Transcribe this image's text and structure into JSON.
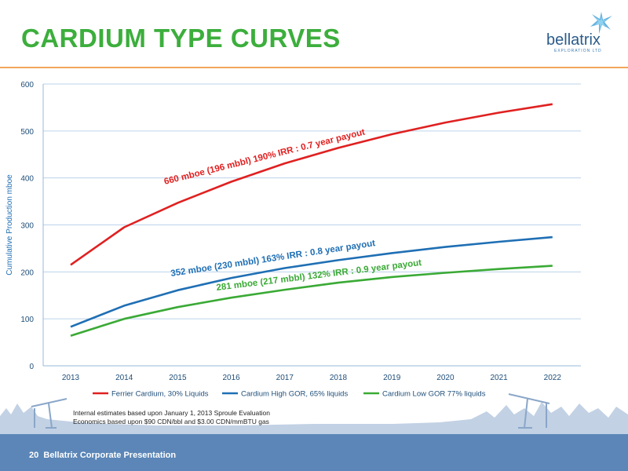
{
  "title": "CARDIUM TYPE CURVES",
  "logo": {
    "name": "bellatrix",
    "sub": "EXPLORATION LTD"
  },
  "footer": {
    "page_number": "20",
    "text": "Bellatrix Corporate Presentation"
  },
  "footnote": {
    "line1": "Internal estimates based upon January 1, 2013 Sproule Evaluation",
    "line2": "Economics based upon $90 CDN/bbl and $3.00 CDN/mmBTU gas"
  },
  "colors": {
    "title": "#3cae3c",
    "footer": "#5b86b7",
    "rule": "#f2a65a",
    "axis_text": "#1f4e79"
  },
  "chart_data": {
    "type": "line",
    "x": [
      "2013",
      "2014",
      "2015",
      "2016",
      "2017",
      "2018",
      "2019",
      "2020",
      "2021",
      "2022"
    ],
    "ylabel": "Cumulative Production mboe",
    "ylim": [
      0,
      600
    ],
    "yticks": [
      0,
      100,
      200,
      300,
      400,
      500,
      600
    ],
    "grid": true,
    "legend_position": "bottom",
    "series": [
      {
        "name": "Ferrier Cardium, 30% Liquids",
        "color": "#e02020",
        "values": [
          215,
          295,
          347,
          392,
          431,
          464,
          493,
          518,
          539,
          557
        ]
      },
      {
        "name": "Cardium High GOR, 65% liquids",
        "color": "#1f6fb4",
        "values": [
          83,
          128,
          161,
          187,
          208,
          225,
          240,
          253,
          264,
          274
        ]
      },
      {
        "name": "Cardium Low GOR 77% liquids",
        "color": "#3aaa35",
        "values": [
          64,
          100,
          125,
          145,
          162,
          177,
          189,
          198,
          206,
          213
        ]
      }
    ],
    "annotations": [
      {
        "text": "660 mboe (196 mbbl)  190% IRR : 0.7 year payout",
        "color": "#e02020"
      },
      {
        "text": "352 mboe (230 mbbl)  163% IRR : 0.8 year payout",
        "color": "#1f6fb4"
      },
      {
        "text": "281 mboe (217 mbbl)  132% IRR : 0.9 year payout",
        "color": "#3aaa35"
      }
    ]
  }
}
